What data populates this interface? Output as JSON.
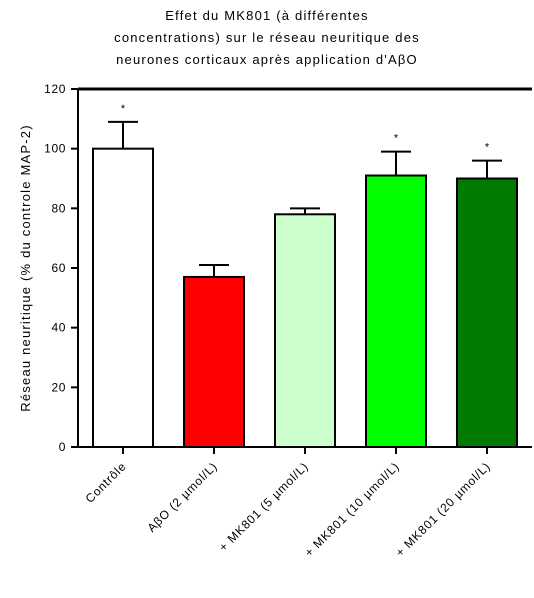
{
  "chart_data": {
    "type": "bar",
    "title": [
      "Effet du MK801 (à différentes",
      "concentrations) sur le réseau neuritique des",
      "neurones corticaux après application d'AβO"
    ],
    "xlabel": "",
    "ylabel": "Réseau neuritique (% du controle MAP-2)",
    "ylim": [
      0,
      120
    ],
    "yticks": [
      0,
      20,
      40,
      60,
      80,
      100,
      120
    ],
    "categories": [
      "Contrôle",
      "AβO (2 µmol/L)",
      "+ MK801 (5 µmol/L)",
      "+ MK801 (10 µmol/L)",
      "+ MK801 (20 µmol/L)"
    ],
    "values": [
      100,
      57,
      78,
      91,
      90
    ],
    "error_upper": [
      109,
      61,
      80,
      99,
      96
    ],
    "significance": [
      "*",
      "",
      "",
      "*",
      "*"
    ],
    "colors": [
      "#ffffff",
      "#ff0000",
      "#ccffcc",
      "#00ff00",
      "#007a00"
    ],
    "grid": false,
    "legend": "none"
  }
}
